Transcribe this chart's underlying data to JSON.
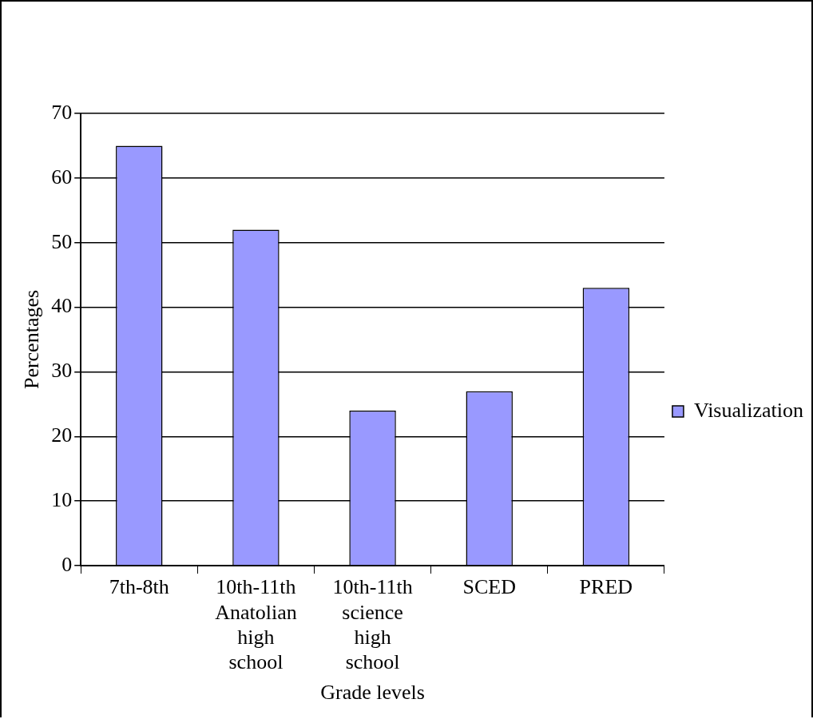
{
  "chart_data": {
    "type": "bar",
    "xlabel": "Grade levels",
    "ylabel": "Percentages",
    "categories": [
      "7th-8th",
      "10th-11th Anatolian high school",
      "10th-11th science high school",
      "SCED",
      "PRED"
    ],
    "series": [
      {
        "name": "Visualization",
        "color": "#9999ff",
        "values": [
          65,
          52,
          24,
          27,
          43
        ]
      }
    ],
    "ylim": [
      0,
      70
    ],
    "yticks": [
      0,
      10,
      20,
      30,
      40,
      50,
      60,
      70
    ],
    "grid": "y",
    "legend": "right"
  }
}
